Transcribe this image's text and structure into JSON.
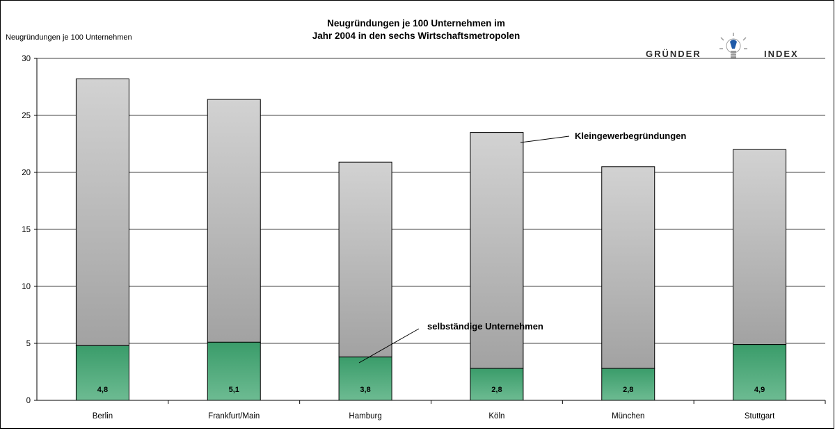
{
  "chart_data": {
    "type": "bar",
    "stacked": true,
    "title_line1": "Neugründungen  je 100 Unternehmen im",
    "title_line2": "Jahr 2004 in den sechs Wirtschaftsmetropolen",
    "ylabel": "Neugründungen je 100 Unternehmen",
    "xlabel": "",
    "ylim": [
      0,
      30
    ],
    "yticks": [
      0,
      5,
      10,
      15,
      20,
      25,
      30
    ],
    "grid": true,
    "categories": [
      "Berlin",
      "Frankfurt/Main",
      "Hamburg",
      "Köln",
      "München",
      "Stuttgart"
    ],
    "series": [
      {
        "name": "selbständige Unternehmen",
        "values": [
          4.8,
          5.1,
          3.8,
          2.8,
          2.8,
          4.9
        ],
        "data_labels": [
          "4,8",
          "5,1",
          "3,8",
          "2,8",
          "2,8",
          "4,9"
        ],
        "color_top": "#3a9c6a",
        "color_bottom": "#6dbb92"
      },
      {
        "name": "Kleingewerbegründungen",
        "values": [
          23.4,
          21.3,
          17.1,
          20.7,
          17.7,
          17.1
        ],
        "color_top": "#d2d2d2",
        "color_bottom": "#a2a2a2"
      }
    ],
    "annotations": [
      {
        "text": "Kleingewerbegründungen",
        "series": "Kleingewerbegründungen"
      },
      {
        "text": "selbständige Unternehmen",
        "series": "selbständige Unternehmen"
      }
    ]
  },
  "logo": {
    "left_text": "GRÜNDER",
    "right_text": "INDEX",
    "icon": "lightbulb-icon",
    "accent_color": "#1f5aa8"
  }
}
